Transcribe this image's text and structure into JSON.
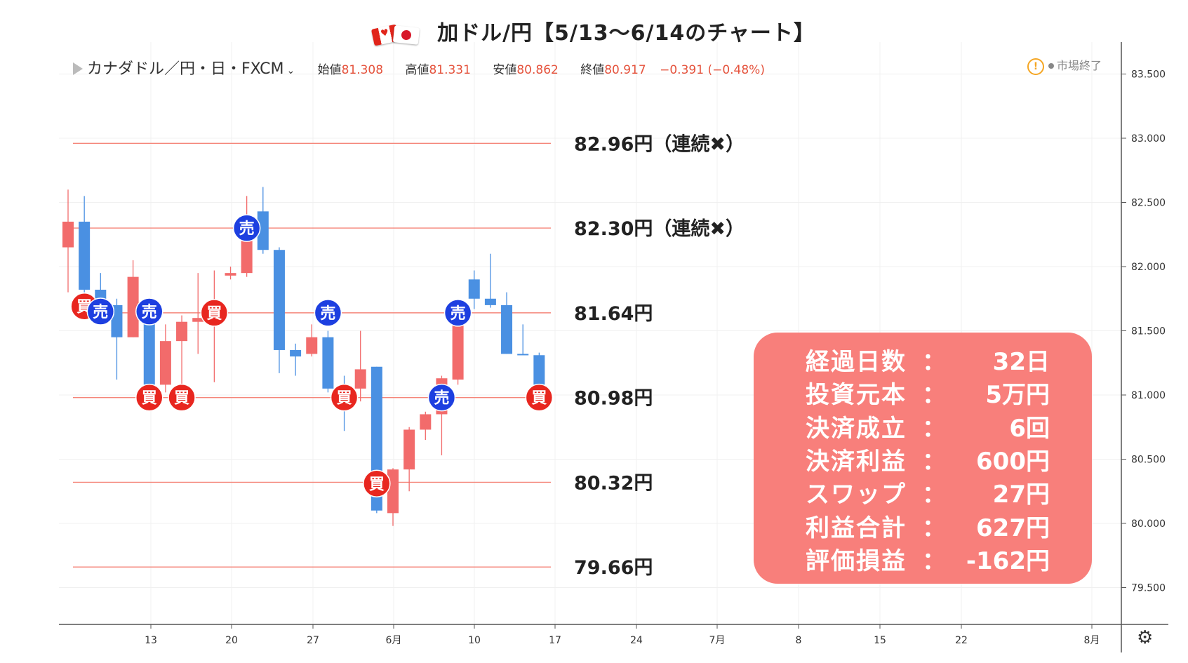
{
  "header": {
    "title": "加ドル/円【5/13〜6/14のチャート】"
  },
  "infobar": {
    "symbol": "カナダドル／円・日・FXCM",
    "open_label": "始値",
    "open": "81.308",
    "high_label": "高値",
    "high": "81.331",
    "low_label": "安値",
    "low": "80.862",
    "close_label": "終値",
    "close": "80.917",
    "change": "−0.391 (−0.48%)",
    "market_status": "市場終了"
  },
  "colors": {
    "up": "#f26b6b",
    "down": "#4a90e2",
    "level_line": "#f5867a",
    "buy_marker": "#e8261f",
    "sell_marker": "#1d3fe0",
    "panel": "#f87f7b"
  },
  "chart_data": {
    "type": "candlestick",
    "y_axis": {
      "min": 79.25,
      "max": 83.6,
      "ticks": [
        "83.500",
        "83.000",
        "82.500",
        "82.000",
        "81.500",
        "81.000",
        "80.500",
        "80.000",
        "79.500"
      ]
    },
    "x_axis": {
      "ticks": [
        "13",
        "20",
        "27",
        "6月",
        "10",
        "17",
        "24",
        "7月",
        "8",
        "15",
        "22",
        "8月"
      ]
    },
    "candles": [
      {
        "o": 82.15,
        "h": 82.6,
        "l": 81.8,
        "c": 82.35
      },
      {
        "o": 82.35,
        "h": 82.55,
        "l": 81.8,
        "c": 81.82
      },
      {
        "o": 81.82,
        "h": 81.95,
        "l": 81.65,
        "c": 81.7
      },
      {
        "o": 81.7,
        "h": 81.75,
        "l": 81.12,
        "c": 81.45
      },
      {
        "o": 81.45,
        "h": 82.05,
        "l": 81.45,
        "c": 81.92
      },
      {
        "o": 81.72,
        "h": 81.75,
        "l": 81.0,
        "c": 81.08
      },
      {
        "o": 81.08,
        "h": 81.55,
        "l": 81.02,
        "c": 81.42
      },
      {
        "o": 81.42,
        "h": 81.62,
        "l": 81.05,
        "c": 81.57
      },
      {
        "o": 81.57,
        "h": 81.95,
        "l": 81.32,
        "c": 81.6
      },
      {
        "o": 81.6,
        "h": 81.97,
        "l": 81.1,
        "c": 81.65
      },
      {
        "o": 81.93,
        "h": 82.0,
        "l": 81.9,
        "c": 81.95
      },
      {
        "o": 81.95,
        "h": 82.55,
        "l": 81.92,
        "c": 82.3
      },
      {
        "o": 82.43,
        "h": 82.62,
        "l": 82.1,
        "c": 82.13
      },
      {
        "o": 82.13,
        "h": 82.15,
        "l": 81.17,
        "c": 81.35
      },
      {
        "o": 81.35,
        "h": 81.4,
        "l": 81.15,
        "c": 81.3
      },
      {
        "o": 81.32,
        "h": 81.55,
        "l": 81.3,
        "c": 81.45
      },
      {
        "o": 81.45,
        "h": 81.5,
        "l": 81.02,
        "c": 81.05
      },
      {
        "o": 81.05,
        "h": 81.15,
        "l": 80.72,
        "c": 80.95
      },
      {
        "o": 81.05,
        "h": 81.5,
        "l": 80.95,
        "c": 81.2
      },
      {
        "o": 81.22,
        "h": 81.22,
        "l": 80.08,
        "c": 80.1
      },
      {
        "o": 80.08,
        "h": 80.43,
        "l": 79.98,
        "c": 80.42
      },
      {
        "o": 80.42,
        "h": 80.75,
        "l": 80.25,
        "c": 80.73
      },
      {
        "o": 80.73,
        "h": 80.87,
        "l": 80.65,
        "c": 80.85
      },
      {
        "o": 80.85,
        "h": 81.15,
        "l": 80.53,
        "c": 81.13
      },
      {
        "o": 81.12,
        "h": 81.72,
        "l": 81.08,
        "c": 81.67
      },
      {
        "o": 81.9,
        "h": 81.97,
        "l": 81.67,
        "c": 81.75
      },
      {
        "o": 81.75,
        "h": 82.1,
        "l": 81.68,
        "c": 81.7
      },
      {
        "o": 81.7,
        "h": 81.8,
        "l": 81.32,
        "c": 81.32
      },
      {
        "o": 81.32,
        "h": 81.55,
        "l": 81.32,
        "c": 81.31
      },
      {
        "o": 81.31,
        "h": 81.33,
        "l": 81.12,
        "c": 81.08
      }
    ],
    "levels": [
      {
        "value": 82.96,
        "label": "82.96円（連続✖）"
      },
      {
        "value": 82.3,
        "label": "82.30円（連続✖）"
      },
      {
        "value": 81.64,
        "label": "81.64円"
      },
      {
        "value": 80.98,
        "label": "80.98円"
      },
      {
        "value": 80.32,
        "label": "80.32円"
      },
      {
        "value": 79.66,
        "label": "79.66円"
      }
    ],
    "markers": [
      {
        "i": 1,
        "value": 81.69,
        "text": "買",
        "side": "buy"
      },
      {
        "i": 2,
        "value": 81.65,
        "text": "売",
        "side": "sell"
      },
      {
        "i": 5,
        "value": 81.65,
        "text": "売",
        "side": "sell"
      },
      {
        "i": 5,
        "value": 80.98,
        "text": "買",
        "side": "buy"
      },
      {
        "i": 7,
        "value": 80.98,
        "text": "買",
        "side": "buy"
      },
      {
        "i": 9,
        "value": 81.64,
        "text": "買",
        "side": "buy"
      },
      {
        "i": 11,
        "value": 82.3,
        "text": "売",
        "side": "sell"
      },
      {
        "i": 16,
        "value": 81.64,
        "text": "売",
        "side": "sell"
      },
      {
        "i": 17,
        "value": 80.98,
        "text": "買",
        "side": "buy"
      },
      {
        "i": 19,
        "value": 80.31,
        "text": "買",
        "side": "buy"
      },
      {
        "i": 23,
        "value": 80.98,
        "text": "売",
        "side": "sell"
      },
      {
        "i": 24,
        "value": 81.64,
        "text": "売",
        "side": "sell"
      },
      {
        "i": 29,
        "value": 80.98,
        "text": "買",
        "side": "buy"
      }
    ]
  },
  "summary": {
    "rows": [
      {
        "label": "経過日数",
        "colon": "：",
        "value": "32日"
      },
      {
        "label": "投資元本",
        "colon": "：",
        "value": "5万円"
      },
      {
        "label": "決済成立",
        "colon": "：",
        "value": "6回"
      },
      {
        "label": "決済利益",
        "colon": "：",
        "value": "600円"
      },
      {
        "label": "スワップ",
        "colon": "：",
        "value": "27円"
      },
      {
        "label": "利益合計",
        "colon": "：",
        "value": "627円"
      },
      {
        "label": "評価損益",
        "colon": "：",
        "value": "-162円"
      }
    ]
  },
  "icons": {
    "settings": "gear-icon",
    "warning": "warning-icon"
  }
}
